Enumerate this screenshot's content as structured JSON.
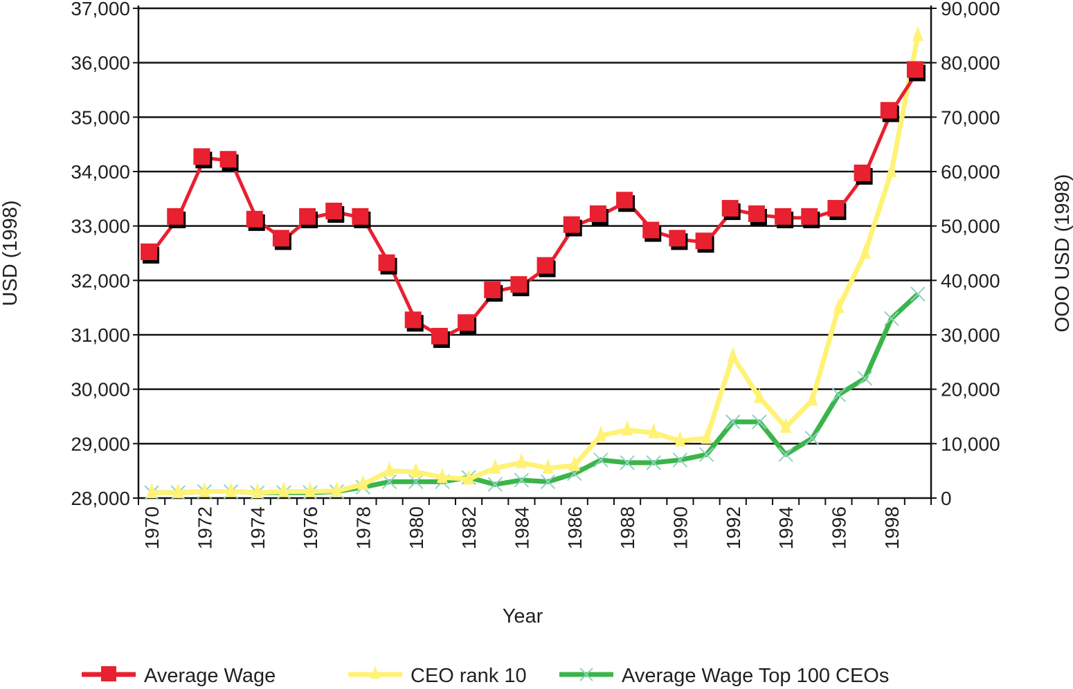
{
  "chart_data": {
    "type": "line",
    "title": "",
    "xlabel": "Year",
    "ylabel_left": "USD (1998)",
    "ylabel_right": "OOO USD (1998)",
    "ylim_left": [
      28000,
      37000
    ],
    "ylim_right": [
      0,
      90000
    ],
    "yticks_left": [
      "28,000",
      "29,000",
      "30,000",
      "31,000",
      "32,000",
      "33,000",
      "34,000",
      "35,000",
      "36,000",
      "37,000"
    ],
    "yticks_right": [
      "0",
      "10,000",
      "20,000",
      "30,000",
      "40,000",
      "50,000",
      "60,000",
      "70,000",
      "80,000",
      "90,000"
    ],
    "xtick_labels": [
      "1970",
      "1972",
      "1974",
      "1976",
      "1978",
      "1980",
      "1982",
      "1984",
      "1986",
      "1988",
      "1990",
      "1992",
      "1994",
      "1996",
      "1998"
    ],
    "x": [
      1970,
      1971,
      1972,
      1973,
      1974,
      1975,
      1976,
      1977,
      1978,
      1979,
      1980,
      1981,
      1982,
      1983,
      1984,
      1985,
      1986,
      1987,
      1988,
      1989,
      1990,
      1991,
      1992,
      1993,
      1994,
      1995,
      1996,
      1997,
      1998,
      1999
    ],
    "grid": true,
    "legend_position": "bottom",
    "series": [
      {
        "name": "Average Wage",
        "axis": "left",
        "color": "#e8202f",
        "marker": "square",
        "values": [
          32500,
          33150,
          34250,
          34200,
          33100,
          32750,
          33150,
          33250,
          33150,
          32300,
          31250,
          30950,
          31200,
          31800,
          31900,
          32250,
          33000,
          33200,
          33450,
          32900,
          32750,
          32700,
          33300,
          33200,
          33150,
          33150,
          33300,
          33950,
          35100,
          35850
        ]
      },
      {
        "name": "CEO rank 10",
        "axis": "right",
        "color": "#fff275",
        "marker": "triangle",
        "values": [
          1000,
          1000,
          1200,
          1200,
          1000,
          1200,
          1200,
          1300,
          2500,
          5000,
          4800,
          3800,
          3500,
          5500,
          6500,
          5500,
          6000,
          11500,
          12500,
          12000,
          10500,
          11000,
          26000,
          18500,
          13000,
          18000,
          35000,
          45000,
          60000,
          85000
        ]
      },
      {
        "name": "Average Wage Top 100 CEOs",
        "axis": "right",
        "color": "#3bb54a",
        "marker": "x",
        "values": [
          1000,
          1000,
          1200,
          1200,
          1000,
          1000,
          1000,
          1200,
          2000,
          3000,
          3000,
          3000,
          3800,
          2500,
          3300,
          3000,
          4500,
          7000,
          6500,
          6500,
          7000,
          8000,
          14000,
          14000,
          8000,
          11000,
          19000,
          22000,
          33000,
          37500
        ]
      }
    ]
  }
}
